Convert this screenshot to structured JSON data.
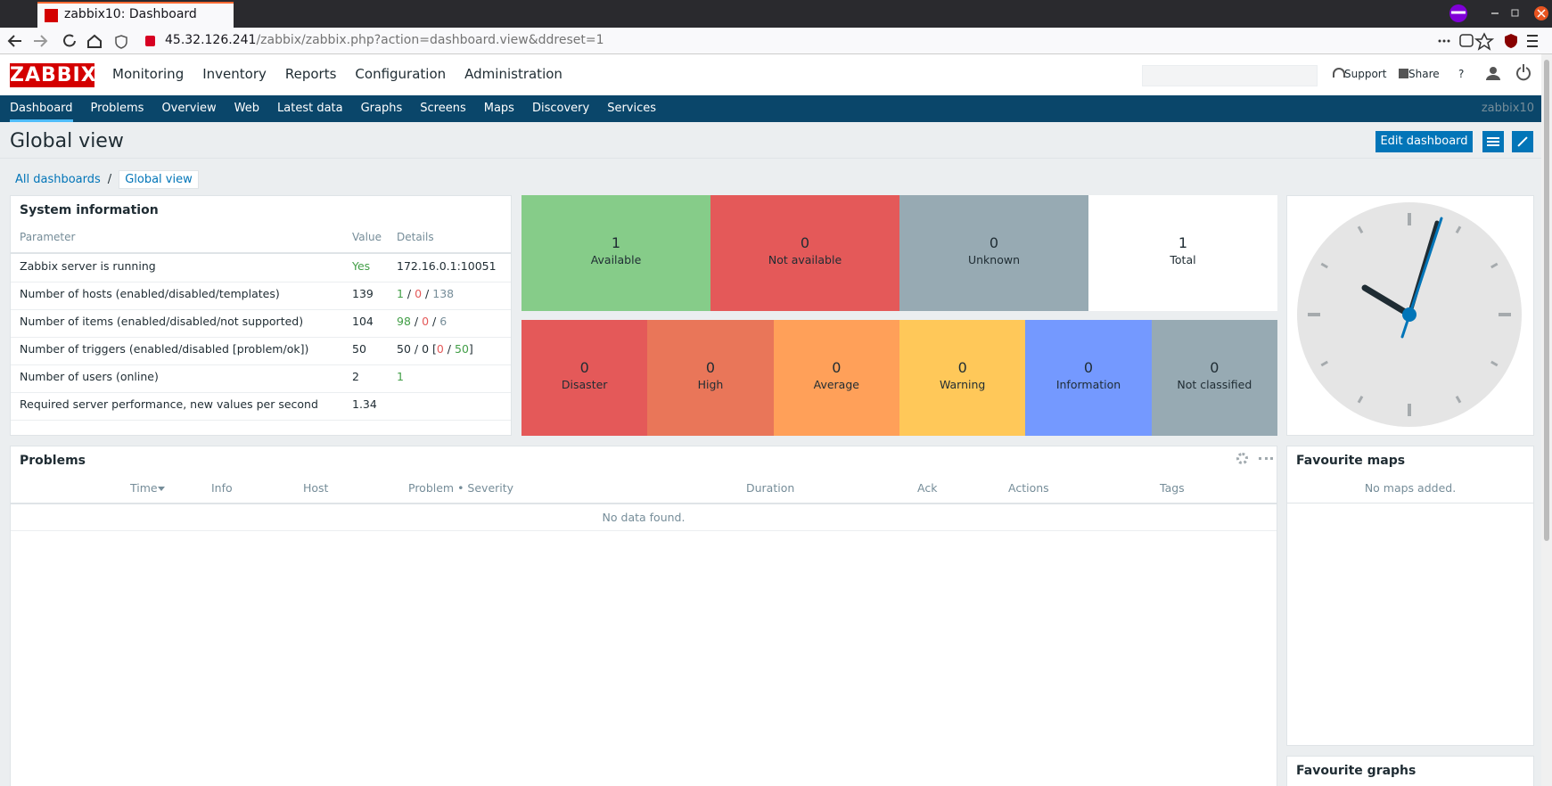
{
  "browser": {
    "tab_title": "zabbix10: Dashboard",
    "url_host": "45.32.126.241",
    "url_path": "/zabbix/zabbix.php?action=dashboard.view&ddreset=1"
  },
  "header": {
    "logo": "ZABBIX",
    "menu": [
      "Monitoring",
      "Inventory",
      "Reports",
      "Configuration",
      "Administration"
    ],
    "active_menu": 0,
    "links": [
      "Support",
      "Share",
      "?"
    ]
  },
  "submenu": {
    "items": [
      "Dashboard",
      "Problems",
      "Overview",
      "Web",
      "Latest data",
      "Graphs",
      "Screens",
      "Maps",
      "Discovery",
      "Services"
    ],
    "active": 0,
    "user": "zabbix10"
  },
  "page": {
    "title": "Global view",
    "edit_button": "Edit dashboard",
    "breadcrumbs": [
      "All dashboards",
      "Global view"
    ],
    "breadcrumb_separator": "/"
  },
  "system_info": {
    "title": "System information",
    "columns": [
      "Parameter",
      "Value",
      "Details"
    ],
    "rows": [
      {
        "parameter": "Zabbix server is running",
        "value": "Yes",
        "value_color": "#429e47",
        "details": [
          {
            "text": "172.16.0.1:10051"
          }
        ]
      },
      {
        "parameter": "Number of hosts (enabled/disabled/templates)",
        "value": 139,
        "details": [
          {
            "text": "1",
            "color": "#429e47"
          },
          {
            "text": " / "
          },
          {
            "text": "0",
            "color": "#e45959"
          },
          {
            "text": " / "
          },
          {
            "text": "138",
            "color": "#768d99"
          }
        ]
      },
      {
        "parameter": "Number of items (enabled/disabled/not supported)",
        "value": 104,
        "details": [
          {
            "text": "98",
            "color": "#429e47"
          },
          {
            "text": " / "
          },
          {
            "text": "0",
            "color": "#e45959"
          },
          {
            "text": " / "
          },
          {
            "text": "6",
            "color": "#768d99"
          }
        ]
      },
      {
        "parameter": "Number of triggers (enabled/disabled [problem/ok])",
        "value": 50,
        "details": [
          {
            "text": "50 / 0 ["
          },
          {
            "text": "0",
            "color": "#e45959"
          },
          {
            "text": " / "
          },
          {
            "text": "50",
            "color": "#429e47"
          },
          {
            "text": "]"
          }
        ]
      },
      {
        "parameter": "Number of users (online)",
        "value": 2,
        "details": [
          {
            "text": "1",
            "color": "#429e47"
          }
        ]
      },
      {
        "parameter": "Required server performance, new values per second",
        "value": 1.34,
        "details": []
      }
    ]
  },
  "host_availability": [
    {
      "count": 1,
      "label": "Available",
      "color": "#86cc89"
    },
    {
      "count": 0,
      "label": "Not available",
      "color": "#e45959"
    },
    {
      "count": 0,
      "label": "Unknown",
      "color": "#97aab3"
    },
    {
      "count": 1,
      "label": "Total",
      "color": "#ffffff"
    }
  ],
  "problems_by_severity": [
    {
      "count": 0,
      "label": "Disaster",
      "color": "#e45959"
    },
    {
      "count": 0,
      "label": "High",
      "color": "#e97659"
    },
    {
      "count": 0,
      "label": "Average",
      "color": "#ffa059"
    },
    {
      "count": 0,
      "label": "Warning",
      "color": "#ffc859"
    },
    {
      "count": 0,
      "label": "Information",
      "color": "#7499ff"
    },
    {
      "count": 0,
      "label": "Not classified",
      "color": "#97aab3"
    }
  ],
  "problems": {
    "title": "Problems",
    "columns": [
      "Time",
      "Info",
      "Host",
      "Problem • Severity",
      "Duration",
      "Ack",
      "Actions",
      "Tags"
    ],
    "empty": "No data found."
  },
  "favourite_maps": {
    "title": "Favourite maps",
    "empty": "No maps added."
  },
  "favourite_graphs": {
    "title": "Favourite graphs"
  }
}
